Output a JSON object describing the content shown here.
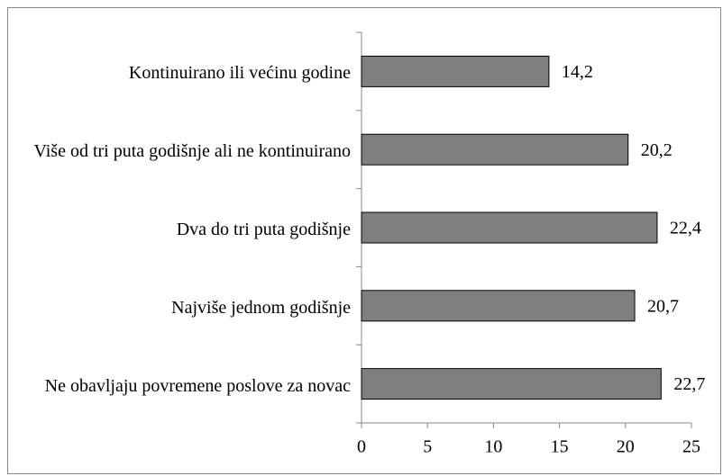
{
  "chart_data": {
    "type": "bar",
    "orientation": "horizontal",
    "categories": [
      "Kontinuirano ili većinu godine",
      "Više od tri puta godišnje ali ne kontinuirano",
      "Dva do tri puta godišnje",
      "Najviše jednom godišnje",
      "Ne obavljaju povremene poslove za novac"
    ],
    "values": [
      14.2,
      20.2,
      22.4,
      20.7,
      22.7
    ],
    "value_labels": [
      "14,2",
      "20,2",
      "22,4",
      "20,7",
      "22,7"
    ],
    "color": "#7f7f7f",
    "xlim": [
      0,
      25
    ],
    "xticks": [
      0,
      5,
      10,
      15,
      20,
      25
    ],
    "grid": false
  }
}
